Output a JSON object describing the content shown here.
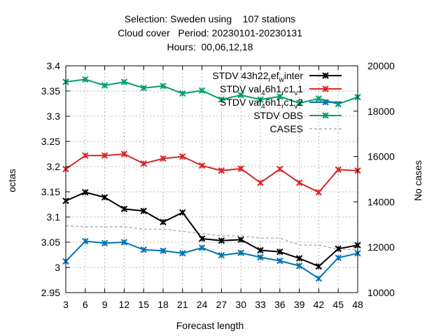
{
  "chart_data": {
    "type": "line",
    "title_lines": [
      "Selection: Sweden using    107 stations",
      "Cloud cover   Period: 20230101-20230131",
      "Hours:  00,06,12,18"
    ],
    "xlabel": "Forecast length",
    "ylabel": "octas",
    "y2label": "No cases",
    "x": [
      3,
      6,
      9,
      12,
      15,
      18,
      21,
      24,
      27,
      30,
      33,
      36,
      39,
      42,
      45,
      48
    ],
    "x_ticks": [
      "3",
      "6",
      "9",
      "12",
      "15",
      "18",
      "21",
      "24",
      "27",
      "30",
      "33",
      "36",
      "39",
      "42",
      "45",
      "48"
    ],
    "xlim": [
      3,
      48
    ],
    "ylim": [
      2.95,
      3.4
    ],
    "y_ticks": [
      "2.95",
      "3",
      "3.05",
      "3.1",
      "3.15",
      "3.2",
      "3.25",
      "3.3",
      "3.35",
      "3.4"
    ],
    "y2lim": [
      10000,
      20000
    ],
    "y2_ticks": [
      "10000",
      "12000",
      "14000",
      "16000",
      "18000",
      "20000"
    ],
    "grid": true,
    "legend_position": "top-right",
    "series": [
      {
        "legend_parts": [
          [
            "STDV 43h22",
            ""
          ],
          [
            "r",
            "sub"
          ],
          [
            "ef",
            ""
          ],
          [
            "w",
            "sub"
          ],
          [
            "inter",
            ""
          ]
        ],
        "axis": "y1",
        "color": "#000000",
        "marker": "x",
        "values": [
          3.132,
          3.149,
          3.139,
          3.116,
          3.112,
          3.09,
          3.109,
          3.057,
          3.053,
          3.055,
          3.034,
          3.031,
          3.018,
          3.002,
          3.037,
          3.044
        ]
      },
      {
        "legend_parts": [
          [
            "STDV val",
            ""
          ],
          [
            "4",
            "sub"
          ],
          [
            "6h1",
            ""
          ],
          [
            "r",
            "sub"
          ],
          [
            "c1",
            ""
          ],
          [
            "v",
            "sub"
          ],
          [
            "1",
            ""
          ]
        ],
        "axis": "y1",
        "color": "#d62728",
        "marker": "x",
        "values": [
          3.195,
          3.222,
          3.222,
          3.225,
          3.206,
          3.216,
          3.22,
          3.202,
          3.192,
          3.196,
          3.168,
          3.195,
          3.168,
          3.149,
          3.194,
          3.192
        ]
      },
      {
        "legend_parts": [
          [
            "STDV val",
            ""
          ],
          [
            "4",
            "sub"
          ],
          [
            "6h1",
            ""
          ],
          [
            "r",
            "sub"
          ],
          [
            "c1",
            ""
          ],
          [
            "v",
            "sub"
          ],
          [
            "2",
            ""
          ]
        ],
        "axis": "y1",
        "color": "#0072b2",
        "marker": "x",
        "values": [
          3.012,
          3.052,
          3.048,
          3.05,
          3.035,
          3.033,
          3.028,
          3.039,
          3.024,
          3.029,
          3.02,
          3.013,
          3.003,
          2.978,
          3.019,
          3.028
        ]
      },
      {
        "legend_parts": [
          [
            "STDV OBS",
            ""
          ]
        ],
        "axis": "y1",
        "color": "#009e73",
        "marker": "x",
        "values": [
          3.368,
          3.373,
          3.361,
          3.368,
          3.356,
          3.36,
          3.345,
          3.351,
          3.333,
          3.342,
          3.333,
          3.339,
          3.326,
          3.335,
          3.324,
          3.338
        ]
      },
      {
        "legend_parts": [
          [
            "CASES",
            ""
          ]
        ],
        "axis": "y2",
        "color": "#a0a0a0",
        "marker": "none",
        "dashed": true,
        "values": [
          12950,
          12900,
          12900,
          12900,
          12800,
          12800,
          12700,
          12600,
          12500,
          12500,
          12400,
          12400,
          12100,
          12100,
          11900,
          11900
        ]
      }
    ]
  }
}
